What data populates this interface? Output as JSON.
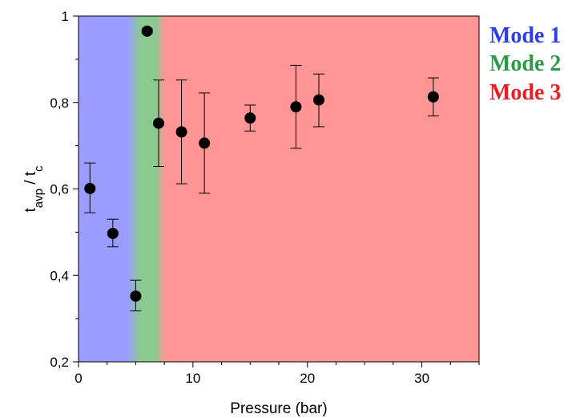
{
  "colors": {
    "mode1": "#2d3ee8",
    "mode2": "#2b9b45",
    "mode3": "#ee1c24",
    "region1_fill": "#9a9cff",
    "region2_fill": "#8cc98f",
    "region3_fill": "#ff9595",
    "marker": "#000000"
  },
  "legend": {
    "mode1": "Mode 1",
    "mode2": "Mode 2",
    "mode3": "Mode 3"
  },
  "chart_data": {
    "type": "scatter",
    "xlabel": "Pressure (bar)",
    "ylabel": {
      "base_main": "t",
      "sub_main": "avp",
      "separator": " / ",
      "base_ref": "t",
      "sub_ref": "c"
    },
    "xlim": [
      0,
      35
    ],
    "ylim": [
      0.2,
      1.0
    ],
    "x_ticks": [
      {
        "value": 0,
        "label": "0"
      },
      {
        "value": 10,
        "label": "10"
      },
      {
        "value": 20,
        "label": "20"
      },
      {
        "value": 30,
        "label": "30"
      }
    ],
    "y_ticks": [
      {
        "value": 0.2,
        "label": "0,2"
      },
      {
        "value": 0.4,
        "label": "0,4"
      },
      {
        "value": 0.6,
        "label": "0,6"
      },
      {
        "value": 0.8,
        "label": "0,8"
      },
      {
        "value": 1.0,
        "label": "1"
      }
    ],
    "regions": [
      {
        "mode": "Mode 1",
        "x_start": 0,
        "x_end": 4.7,
        "color_key": "region1_fill"
      },
      {
        "mode": "Mode 2",
        "x_start": 4.7,
        "x_end": 7.3,
        "color_key": "region2_fill"
      },
      {
        "mode": "Mode 3",
        "x_start": 7.3,
        "x_end": 35,
        "color_key": "region3_fill"
      }
    ],
    "points": [
      {
        "x": 1,
        "y": 0.601,
        "y_low": 0.545,
        "y_high": 0.66
      },
      {
        "x": 3,
        "y": 0.497,
        "y_low": 0.466,
        "y_high": 0.53
      },
      {
        "x": 5,
        "y": 0.352,
        "y_low": 0.318,
        "y_high": 0.389
      },
      {
        "x": 6,
        "y": 0.965,
        "y_low": 0.96,
        "y_high": 0.97
      },
      {
        "x": 7,
        "y": 0.752,
        "y_low": 0.652,
        "y_high": 0.852
      },
      {
        "x": 9,
        "y": 0.732,
        "y_low": 0.612,
        "y_high": 0.852
      },
      {
        "x": 11,
        "y": 0.706,
        "y_low": 0.59,
        "y_high": 0.822
      },
      {
        "x": 15,
        "y": 0.764,
        "y_low": 0.734,
        "y_high": 0.794
      },
      {
        "x": 19,
        "y": 0.79,
        "y_low": 0.694,
        "y_high": 0.886
      },
      {
        "x": 21,
        "y": 0.806,
        "y_low": 0.744,
        "y_high": 0.866
      },
      {
        "x": 31,
        "y": 0.813,
        "y_low": 0.769,
        "y_high": 0.857
      }
    ]
  }
}
